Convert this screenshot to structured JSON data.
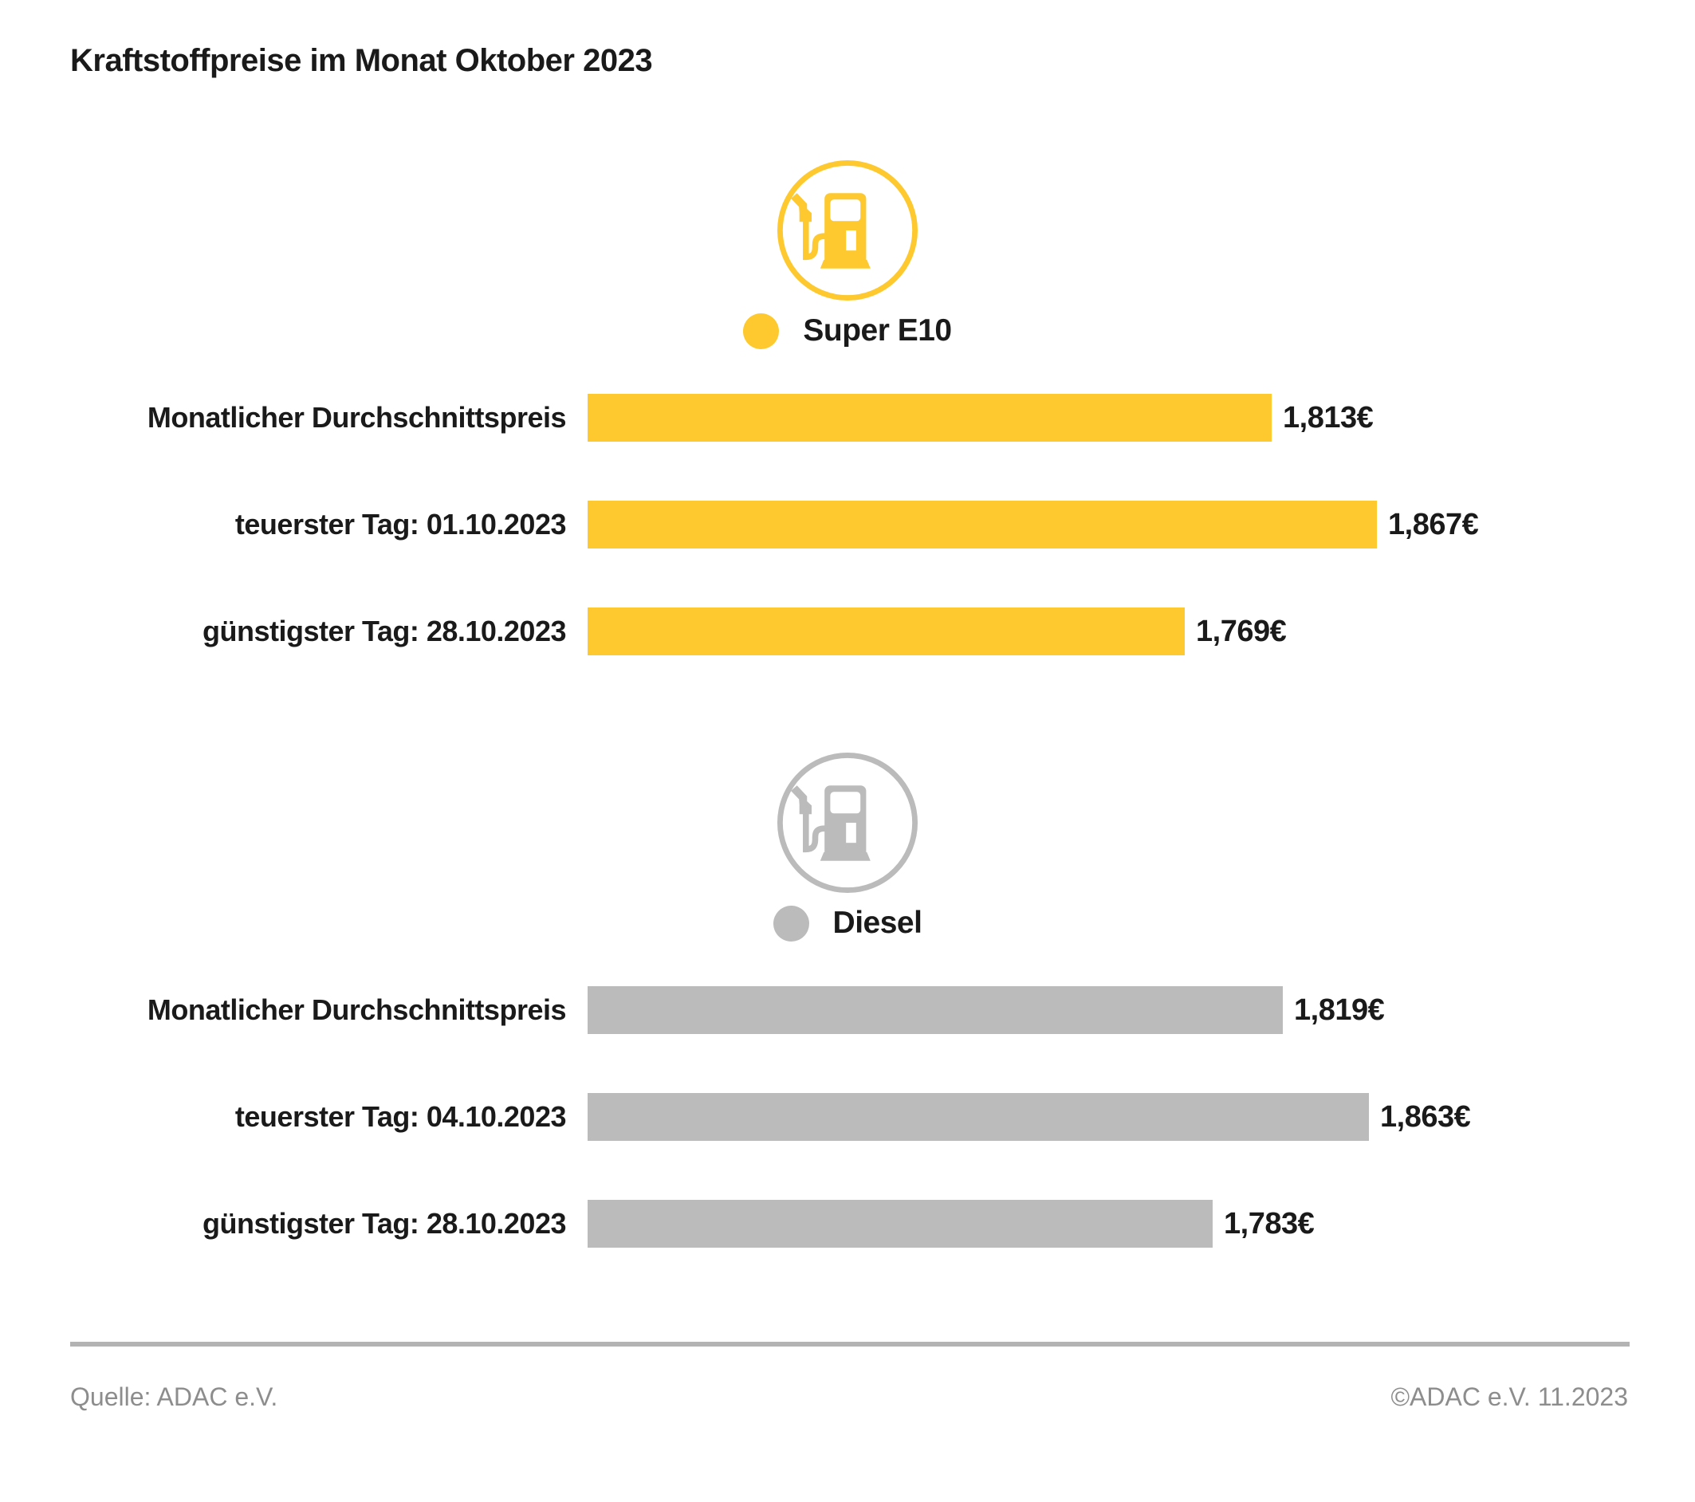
{
  "title": "Kraftstoffpreise im Monat Oktober 2023",
  "colors": {
    "super_e10_yellow": "#FDC92F",
    "diesel_gray": "#BBBBBB",
    "text": "#1A1A1A",
    "footer_text": "#8D8D8D",
    "divider": "#B3B3B3"
  },
  "chart_data": [
    {
      "type": "bar",
      "orientation": "horizontal",
      "title": "Super E10",
      "legend_position": "top-center",
      "icon": "fuel-pump-icon",
      "color": "#FDC92F",
      "categories": [
        "Monatlicher Durchschnittspreis",
        "teuerster Tag: 01.10.2023",
        "günstigster Tag: 28.10.2023"
      ],
      "values": [
        1.813,
        1.867,
        1.769
      ],
      "value_labels": [
        "1,813€",
        "1,867€",
        "1,769€"
      ],
      "xlim": [
        1.464,
        2.05
      ],
      "grid": false
    },
    {
      "type": "bar",
      "orientation": "horizontal",
      "title": "Diesel",
      "legend_position": "top-center",
      "icon": "fuel-pump-icon",
      "color": "#BBBBBB",
      "categories": [
        "Monatlicher Durchschnittspreis",
        "teuerster Tag: 04.10.2023",
        "günstigster Tag: 28.10.2023"
      ],
      "values": [
        1.819,
        1.863,
        1.783
      ],
      "value_labels": [
        "1,819€",
        "1,863€",
        "1,783€"
      ],
      "xlim": [
        1.464,
        2.05
      ],
      "grid": false
    }
  ],
  "footer": {
    "source": "Quelle: ADAC e.V.",
    "copyright": "©ADAC e.V. 11.2023"
  }
}
